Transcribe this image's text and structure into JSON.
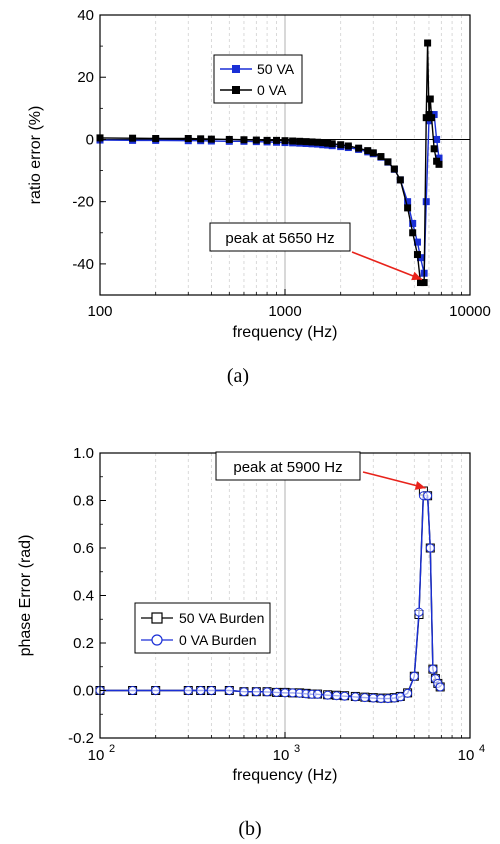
{
  "chart_data": [
    {
      "type": "line",
      "xscale": "log",
      "xlim": [
        100,
        10000
      ],
      "ylim": [
        -50,
        40
      ],
      "xlabel": "frequency (Hz)",
      "ylabel": "ratio error (%)",
      "x_ticks": [
        "100",
        "1000",
        "10000"
      ],
      "y_ticks": [
        "-40",
        "-20",
        "0",
        "20",
        "40"
      ],
      "grid": "vertical",
      "legend_position": "upper-center",
      "caption": "(a)",
      "annotation": {
        "text": "peak at 5650 Hz",
        "x": 5650,
        "y": -46
      },
      "series": [
        {
          "name": "50 VA",
          "color": "#1a2fd6",
          "marker": "square",
          "x": [
            100,
            150,
            200,
            300,
            350,
            400,
            500,
            600,
            700,
            800,
            900,
            1000,
            1100,
            1200,
            1300,
            1400,
            1500,
            1600,
            1700,
            1800,
            2000,
            2200,
            2500,
            2800,
            3000,
            3300,
            3600,
            3900,
            4200,
            4600,
            4900,
            5200,
            5400,
            5650,
            5800,
            6000,
            6200,
            6400,
            6600,
            6800
          ],
          "y": [
            -0.2,
            -0.3,
            -0.3,
            -0.4,
            -0.4,
            -0.5,
            -0.6,
            -0.6,
            -0.7,
            -0.8,
            -0.9,
            -1.0,
            -1.1,
            -1.2,
            -1.3,
            -1.4,
            -1.5,
            -1.7,
            -1.8,
            -2.0,
            -2.3,
            -2.6,
            -3.2,
            -4.0,
            -4.6,
            -5.7,
            -7.3,
            -9.6,
            -13.0,
            -20.0,
            -27.0,
            -33.0,
            -38.0,
            -43.0,
            -20.0,
            6.0,
            8.0,
            8.0,
            0.0,
            -6.0
          ]
        },
        {
          "name": "0 VA",
          "color": "#000000",
          "marker": "square",
          "x": [
            100,
            150,
            200,
            300,
            350,
            400,
            500,
            600,
            700,
            800,
            900,
            1000,
            1100,
            1200,
            1300,
            1400,
            1500,
            1600,
            1700,
            1800,
            2000,
            2200,
            2500,
            2800,
            3000,
            3300,
            3600,
            3900,
            4200,
            4600,
            4900,
            5200,
            5400,
            5650,
            5800,
            5900,
            6000,
            6100,
            6200,
            6400,
            6600,
            6800
          ],
          "y": [
            0.5,
            0.4,
            0.3,
            0.3,
            0.2,
            0.1,
            0.0,
            -0.1,
            -0.2,
            -0.3,
            -0.3,
            -0.4,
            -0.5,
            -0.6,
            -0.7,
            -0.8,
            -0.9,
            -1.0,
            -1.2,
            -1.4,
            -1.7,
            -2.1,
            -2.8,
            -3.6,
            -4.3,
            -5.5,
            -7.2,
            -9.5,
            -13.0,
            -22.0,
            -30.0,
            -37.0,
            -46.0,
            -46.0,
            7.0,
            31.0,
            8.0,
            13.0,
            7.0,
            -3.0,
            -7.0,
            -8.0
          ]
        }
      ]
    },
    {
      "type": "line",
      "xscale": "log",
      "xlim": [
        100,
        10000
      ],
      "ylim": [
        -0.2,
        1.0
      ],
      "xlabel": "frequency (Hz)",
      "ylabel": "phase Error (rad)",
      "x_ticks": [
        {
          "base": "10",
          "exp": "2"
        },
        {
          "base": "10",
          "exp": "3"
        },
        {
          "base": "10",
          "exp": "4"
        }
      ],
      "y_ticks": [
        "-0.2",
        "0.0",
        "0.2",
        "0.4",
        "0.6",
        "0.8",
        "1.0"
      ],
      "grid": "vertical",
      "legend_position": "center-left",
      "caption": "(b)",
      "annotation": {
        "text": "peak at 5900 Hz",
        "x": 5900,
        "y": 0.84
      },
      "series": [
        {
          "name": "50 VA Burden",
          "color": "#000000",
          "marker": "open-square",
          "x": [
            100,
            150,
            200,
            300,
            350,
            400,
            500,
            600,
            700,
            800,
            900,
            1000,
            1100,
            1200,
            1300,
            1400,
            1500,
            1700,
            1900,
            2100,
            2400,
            2700,
            3000,
            3300,
            3600,
            3900,
            4200,
            4600,
            5000,
            5300,
            5600,
            5900,
            6100,
            6300,
            6500,
            6700,
            6900
          ],
          "y": [
            0.0,
            0.0,
            0.0,
            0.0,
            0.0,
            0.0,
            0.0,
            -0.005,
            -0.005,
            -0.005,
            -0.008,
            -0.008,
            -0.01,
            -0.01,
            -0.012,
            -0.015,
            -0.015,
            -0.018,
            -0.02,
            -0.022,
            -0.025,
            -0.028,
            -0.03,
            -0.032,
            -0.032,
            -0.03,
            -0.025,
            -0.01,
            0.06,
            0.32,
            0.84,
            0.82,
            0.6,
            0.09,
            0.05,
            0.03,
            0.015
          ]
        },
        {
          "name": "0 VA Burden",
          "color": "#1a2fd6",
          "marker": "open-circle",
          "x": [
            100,
            150,
            200,
            300,
            350,
            400,
            500,
            600,
            700,
            800,
            900,
            1000,
            1100,
            1200,
            1300,
            1400,
            1500,
            1700,
            1900,
            2100,
            2400,
            2700,
            3000,
            3300,
            3600,
            3900,
            4200,
            4600,
            5000,
            5300,
            5600,
            5900,
            6100,
            6300,
            6500,
            6700,
            6900
          ],
          "y": [
            0.0,
            0.0,
            0.0,
            0.0,
            0.0,
            0.0,
            0.0,
            -0.005,
            -0.005,
            -0.006,
            -0.008,
            -0.01,
            -0.01,
            -0.012,
            -0.014,
            -0.016,
            -0.016,
            -0.02,
            -0.022,
            -0.024,
            -0.027,
            -0.03,
            -0.032,
            -0.034,
            -0.034,
            -0.032,
            -0.027,
            -0.012,
            0.06,
            0.33,
            0.82,
            0.82,
            0.6,
            0.09,
            0.05,
            0.03,
            0.015
          ]
        }
      ]
    }
  ]
}
